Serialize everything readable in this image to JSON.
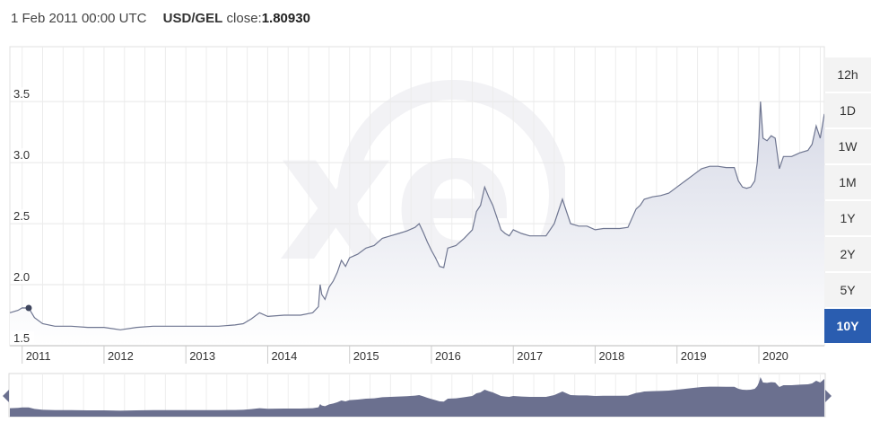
{
  "header": {
    "date": "1 Feb 2011 00:00 UTC",
    "pair": "USD/GEL",
    "close_label": "close:",
    "close_value": "1.80930"
  },
  "range_buttons": [
    {
      "label": "12h",
      "active": false
    },
    {
      "label": "1D",
      "active": false
    },
    {
      "label": "1W",
      "active": false
    },
    {
      "label": "1M",
      "active": false
    },
    {
      "label": "1Y",
      "active": false
    },
    {
      "label": "2Y",
      "active": false
    },
    {
      "label": "5Y",
      "active": false
    },
    {
      "label": "10Y",
      "active": true
    }
  ],
  "watermark": "xe",
  "colors": {
    "line": "#6f7691",
    "area_top": "#d6d9e6",
    "area_bottom": "#ffffff",
    "navigator_fill": "#6b708f",
    "grid": "#e6e6e6",
    "active_button": "#2a5db0"
  },
  "chart_data": {
    "type": "area",
    "title": "",
    "xlabel": "",
    "ylabel": "",
    "ylim": [
      1.5,
      3.95
    ],
    "xlim": [
      2010.85,
      2020.8
    ],
    "y_ticks": [
      1.5,
      2.0,
      2.5,
      3.0,
      3.5
    ],
    "y_tick_labels": [
      "1.5",
      "2.0",
      "2.5",
      "3.0",
      "3.5"
    ],
    "x_ticks": [
      2011,
      2012,
      2013,
      2014,
      2015,
      2016,
      2017,
      2018,
      2019,
      2020
    ],
    "x_tick_labels": [
      "2011",
      "2012",
      "2013",
      "2014",
      "2015",
      "2016",
      "2017",
      "2018",
      "2019",
      "2020"
    ],
    "grid": true,
    "highlight_point": {
      "x": 2011.08,
      "y": 1.809
    },
    "series": [
      {
        "x": [
          2010.85,
          2010.95,
          2011.0,
          2011.08,
          2011.15,
          2011.25,
          2011.4,
          2011.6,
          2011.8,
          2012.0,
          2012.2,
          2012.4,
          2012.6,
          2012.8,
          2013.0,
          2013.2,
          2013.4,
          2013.6,
          2013.7,
          2013.8,
          2013.9,
          2014.0,
          2014.2,
          2014.4,
          2014.55,
          2014.62,
          2014.64,
          2014.66,
          2014.7,
          2014.75,
          2014.8,
          2014.85,
          2014.9,
          2014.95,
          2015.0,
          2015.1,
          2015.2,
          2015.3,
          2015.4,
          2015.5,
          2015.6,
          2015.7,
          2015.8,
          2015.85,
          2015.9,
          2015.95,
          2016.0,
          2016.05,
          2016.1,
          2016.15,
          2016.2,
          2016.3,
          2016.4,
          2016.5,
          2016.55,
          2016.6,
          2016.65,
          2016.7,
          2016.75,
          2016.8,
          2016.85,
          2016.9,
          2016.95,
          2017.0,
          2017.1,
          2017.2,
          2017.3,
          2017.4,
          2017.5,
          2017.55,
          2017.6,
          2017.65,
          2017.7,
          2017.8,
          2017.9,
          2018.0,
          2018.1,
          2018.2,
          2018.3,
          2018.4,
          2018.5,
          2018.55,
          2018.6,
          2018.7,
          2018.8,
          2018.9,
          2019.0,
          2019.1,
          2019.2,
          2019.3,
          2019.4,
          2019.5,
          2019.6,
          2019.7,
          2019.75,
          2019.8,
          2019.85,
          2019.9,
          2019.95,
          2019.98,
          2020.0,
          2020.02,
          2020.05,
          2020.1,
          2020.15,
          2020.2,
          2020.25,
          2020.3,
          2020.4,
          2020.5,
          2020.6,
          2020.65,
          2020.7,
          2020.75,
          2020.8
        ],
        "y": [
          1.77,
          1.79,
          1.81,
          1.809,
          1.73,
          1.68,
          1.66,
          1.66,
          1.65,
          1.65,
          1.63,
          1.65,
          1.66,
          1.66,
          1.66,
          1.66,
          1.66,
          1.67,
          1.68,
          1.72,
          1.77,
          1.74,
          1.75,
          1.75,
          1.77,
          1.82,
          2.0,
          1.92,
          1.88,
          1.98,
          2.03,
          2.1,
          2.2,
          2.15,
          2.22,
          2.25,
          2.3,
          2.32,
          2.38,
          2.4,
          2.42,
          2.44,
          2.47,
          2.5,
          2.43,
          2.35,
          2.28,
          2.22,
          2.15,
          2.14,
          2.3,
          2.32,
          2.38,
          2.45,
          2.6,
          2.65,
          2.8,
          2.72,
          2.65,
          2.55,
          2.45,
          2.42,
          2.4,
          2.45,
          2.42,
          2.4,
          2.4,
          2.4,
          2.5,
          2.6,
          2.7,
          2.6,
          2.5,
          2.48,
          2.48,
          2.45,
          2.46,
          2.46,
          2.46,
          2.47,
          2.62,
          2.65,
          2.7,
          2.72,
          2.73,
          2.75,
          2.8,
          2.85,
          2.9,
          2.95,
          2.97,
          2.97,
          2.96,
          2.96,
          2.85,
          2.8,
          2.79,
          2.8,
          2.85,
          3.0,
          3.2,
          3.5,
          3.2,
          3.18,
          3.22,
          3.2,
          2.95,
          3.05,
          3.05,
          3.08,
          3.1,
          3.15,
          3.3,
          3.2,
          3.4
        ]
      }
    ]
  }
}
